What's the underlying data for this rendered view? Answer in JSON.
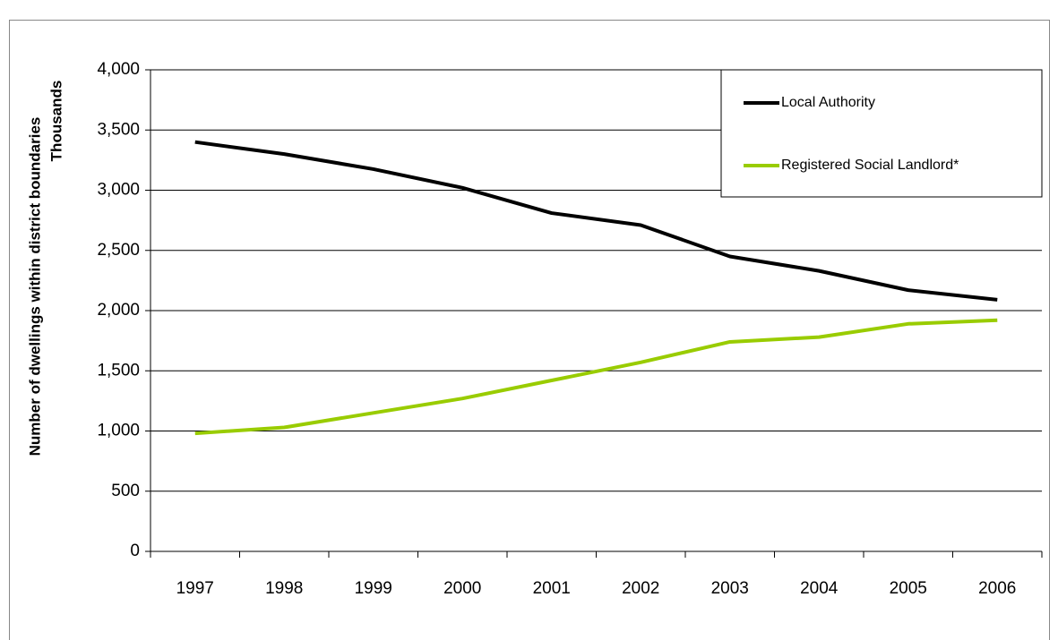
{
  "chart_data": {
    "type": "line",
    "y_label": "Number of dwellings within district boundaries",
    "y_unit_label": "Thousands",
    "categories": [
      "1997",
      "1998",
      "1999",
      "2000",
      "2001",
      "2002",
      "2003",
      "2004",
      "2005",
      "2006"
    ],
    "series": [
      {
        "name": "Local Authority",
        "color": "#000000",
        "values": [
          3400,
          3300,
          3175,
          3020,
          2810,
          2710,
          2450,
          2330,
          2170,
          2090
        ]
      },
      {
        "name": "Registered Social Landlord*",
        "color": "#99cc00",
        "values": [
          980,
          1030,
          1150,
          1270,
          1420,
          1570,
          1740,
          1780,
          1890,
          1920
        ]
      }
    ],
    "ylim": [
      0,
      4000
    ],
    "yticks": [
      0,
      500,
      {
        "value": 1000,
        "label": "1,000"
      },
      {
        "value": 1500,
        "label": "1,500"
      },
      {
        "value": 2000,
        "label": "2,000"
      },
      {
        "value": 2500,
        "label": "2,500"
      },
      {
        "value": 3000,
        "label": "3,000"
      },
      {
        "value": 3500,
        "label": "3,500"
      },
      {
        "value": 4000,
        "label": "4,000"
      }
    ],
    "grid": true,
    "legend": "top-right"
  }
}
